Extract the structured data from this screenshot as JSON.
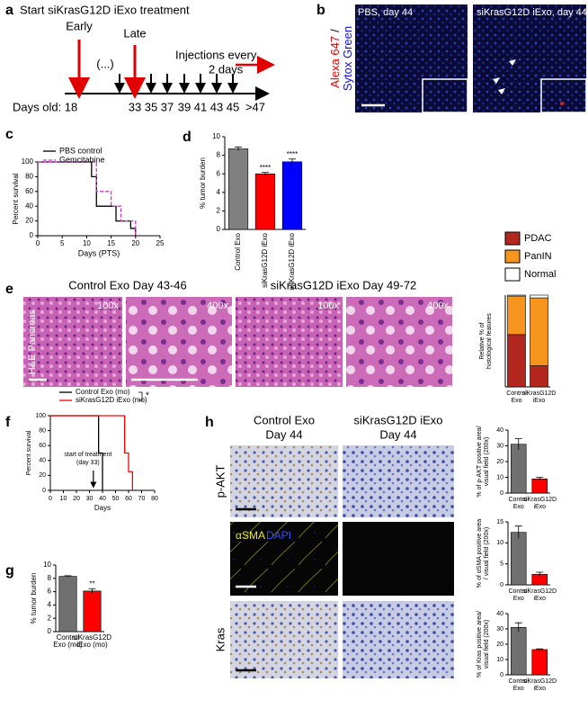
{
  "panel_labels": [
    "a",
    "b",
    "c",
    "d",
    "e",
    "f",
    "g",
    "h"
  ],
  "timeline": {
    "start": "Start siKrasG12D iExo treatment",
    "early": "Early",
    "late": "Late",
    "injections": [
      "Injections every",
      "2 days"
    ],
    "days_old": "Days old: 18",
    "ellipsis": "(...)",
    "days": [
      "33",
      "35",
      "37",
      "39",
      "41",
      "43",
      "45",
      ">47"
    ]
  },
  "fluorescence": {
    "red_label": "Alexa 647",
    "slash": "/",
    "blue_label": "Sytox Green",
    "left": "PBS, day 44",
    "right": "siKrasG12D iExo, day 44"
  },
  "histology": {
    "side_label": "H&E Pancreas",
    "titles": [
      "Control Exo Day 43-46",
      "siKrasG12D iExo Day 49-72"
    ],
    "magnifications": [
      "100x",
      "400x",
      "100x",
      "400x"
    ]
  },
  "ihc": {
    "columns": [
      [
        "Control Exo",
        "Day 44"
      ],
      [
        "siKrasG12D iExo",
        "Day 44"
      ]
    ],
    "rows": [
      "p-AKT",
      "Kras"
    ],
    "sma": "αSMA",
    "dapi": "DAPI"
  },
  "chart_data": [
    {
      "type": "line",
      "step": true,
      "xlabel": "Days (PTS)",
      "ylabel": "Percent survival",
      "xlim": [
        0,
        25
      ],
      "xticks": [
        0,
        5,
        10,
        15,
        20,
        25
      ],
      "ylim": [
        0,
        100
      ],
      "yticks": [
        0,
        20,
        40,
        60,
        80,
        100
      ],
      "legend": "upper left",
      "series": [
        {
          "name": "PBS control",
          "color": "#000000",
          "dashed": false,
          "x": [
            0,
            11,
            12,
            16,
            19,
            20
          ],
          "values": [
            100,
            80,
            40,
            20,
            10,
            0
          ]
        },
        {
          "name": "Gemcitabine",
          "color": "#cc33cc",
          "dashed": true,
          "x": [
            0,
            12,
            15,
            17,
            20
          ],
          "values": [
            100,
            60,
            40,
            20,
            0
          ]
        }
      ]
    },
    {
      "type": "bar",
      "ylabel": [
        "% tumor burden"
      ],
      "ylim": [
        0,
        10
      ],
      "yticks": [
        0,
        2,
        4,
        6,
        8,
        10
      ],
      "categories": [
        "Control Exo",
        "siKrasG12D iExo",
        "shKrasG12D iExo"
      ],
      "values": [
        8.7,
        6.0,
        7.3
      ],
      "errors": [
        0.2,
        0.15,
        0.3
      ],
      "colors": [
        "#808080",
        "#ff0000",
        "#0000ff"
      ],
      "significance": [
        null,
        "****",
        "****"
      ]
    },
    {
      "type": "stacked_bar",
      "ylabel": [
        "Relative % of",
        "histological features"
      ],
      "ylim": [
        0,
        100
      ],
      "categories": [
        [
          "Control",
          "Exo"
        ],
        [
          "siKrasG12D",
          "iExo"
        ]
      ],
      "series": [
        {
          "name": "PDAC",
          "color": "#b3261e",
          "values": [
            57,
            23
          ]
        },
        {
          "name": "PanIN",
          "color": "#f7941d",
          "values": [
            42,
            74
          ]
        },
        {
          "name": "Normal",
          "color": "#ffffff",
          "values": [
            1,
            3
          ]
        }
      ]
    },
    {
      "type": "line",
      "step": true,
      "xlabel": "Days",
      "ylabel": "Percent survival",
      "xlim": [
        0,
        80
      ],
      "xticks": [
        0,
        10,
        20,
        30,
        40,
        50,
        60,
        70,
        80
      ],
      "ylim": [
        0,
        100
      ],
      "yticks": [
        0,
        20,
        40,
        60,
        80,
        100
      ],
      "legend": "top",
      "legend_significance": "*",
      "annotation": [
        "start of treatment",
        "(day 33)"
      ],
      "annotation_x": 33,
      "series": [
        {
          "name": "Control Exo (mo)",
          "color": "#000000",
          "dashed": false,
          "x": [
            0,
            37,
            40
          ],
          "values": [
            100,
            50,
            0
          ]
        },
        {
          "name": "siKrasG12D iExo (mo)",
          "color": "#ff0000",
          "dashed": false,
          "x": [
            0,
            57,
            60,
            63
          ],
          "values": [
            100,
            50,
            25,
            0
          ]
        }
      ]
    },
    {
      "type": "bar",
      "ylabel": [
        "% tumor burden"
      ],
      "ylim": [
        0,
        10
      ],
      "yticks": [
        0,
        2,
        4,
        6,
        8,
        10
      ],
      "categories": [
        [
          "Control",
          "Exo (mo)"
        ],
        [
          "siKrasG12D",
          "iExo (mo)"
        ]
      ],
      "values": [
        8.3,
        6.1
      ],
      "errors": [
        0.1,
        0.35
      ],
      "colors": [
        "#707070",
        "#ff0000"
      ],
      "significance": [
        null,
        "**"
      ]
    },
    {
      "type": "bar",
      "ylabel": [
        "% of p-AKT positive area/",
        "visual field (200x)"
      ],
      "ylim": [
        0,
        40
      ],
      "yticks": [
        0,
        10,
        20,
        30,
        40
      ],
      "categories": [
        [
          "Control",
          "Exo"
        ],
        [
          "siKrasG12D",
          "iExo"
        ]
      ],
      "values": [
        31,
        9
      ],
      "errors": [
        3.5,
        1
      ],
      "colors": [
        "#707070",
        "#ff0000"
      ]
    },
    {
      "type": "bar",
      "ylabel": [
        "% of αSMA positive area",
        "/ visual field (200x)"
      ],
      "ylim": [
        0,
        15
      ],
      "yticks": [
        0,
        5,
        10,
        15
      ],
      "categories": [
        [
          "Control",
          "Exo"
        ],
        [
          "siKrasG12D",
          "iExo"
        ]
      ],
      "values": [
        12.5,
        2.5
      ],
      "errors": [
        1.5,
        0.5
      ],
      "colors": [
        "#707070",
        "#ff0000"
      ]
    },
    {
      "type": "bar",
      "ylabel": [
        "% of Kras positive area/",
        "visual field (200x)"
      ],
      "ylim": [
        0,
        40
      ],
      "yticks": [
        0,
        10,
        20,
        30,
        40
      ],
      "categories": [
        [
          "Control",
          "Exo"
        ],
        [
          "siKrasG12D",
          "iExo"
        ]
      ],
      "values": [
        31,
        16.5
      ],
      "errors": [
        3,
        0.5
      ],
      "colors": [
        "#707070",
        "#ff0000"
      ]
    }
  ]
}
